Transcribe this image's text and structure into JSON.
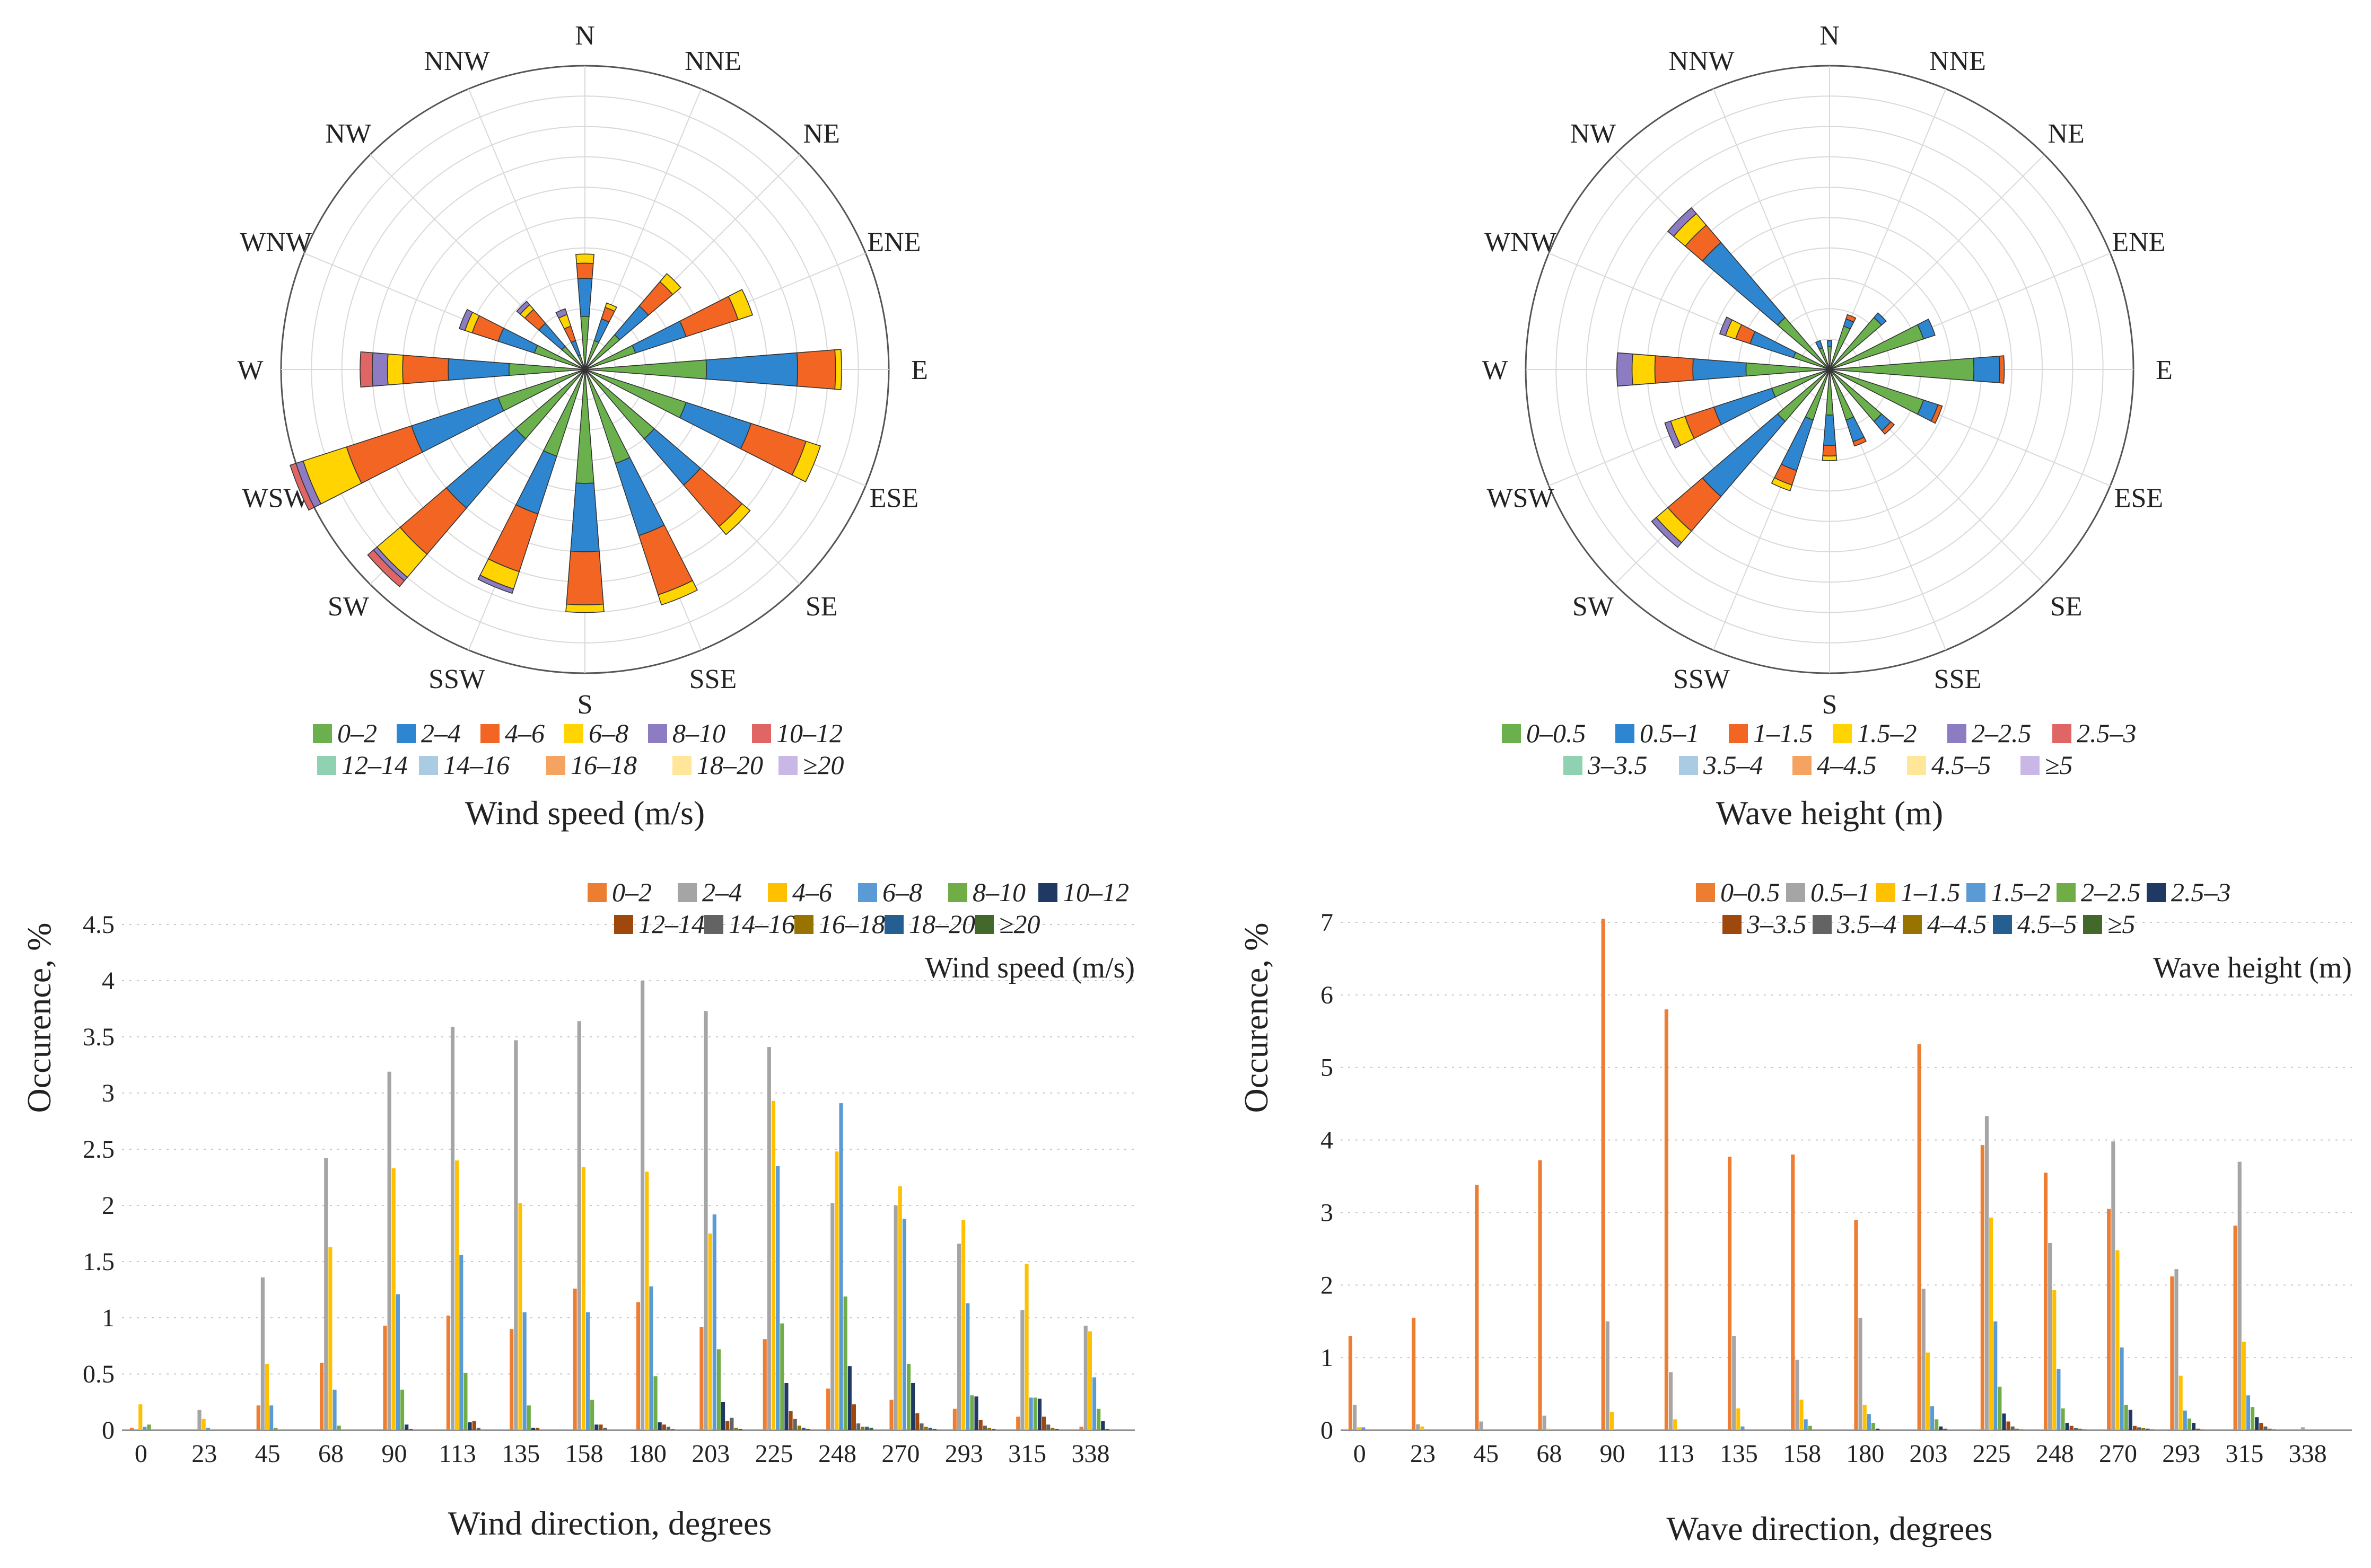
{
  "direction_labels": [
    "N",
    "NNE",
    "NE",
    "ENE",
    "E",
    "ESE",
    "SE",
    "SSE",
    "S",
    "SSW",
    "SW",
    "WSW",
    "W",
    "WNW",
    "NW",
    "NNW"
  ],
  "bar_categories": [
    "0",
    "23",
    "45",
    "68",
    "90",
    "113",
    "135",
    "158",
    "180",
    "203",
    "225",
    "248",
    "270",
    "293",
    "315",
    "338"
  ],
  "colors": {
    "rose_wind": [
      "#6ab04c",
      "#2e86d0",
      "#f26522",
      "#ffd400",
      "#8e7cc3",
      "#e06666",
      "#8fd1b0",
      "#a9cce3",
      "#f4a460",
      "#ffe699",
      "#c9b8e6"
    ],
    "rose_wave": [
      "#6ab04c",
      "#2e86d0",
      "#f26522",
      "#ffd400",
      "#8e7cc3",
      "#e06666",
      "#8fd1b0",
      "#a9cce3",
      "#f4a460",
      "#ffe699",
      "#c9b8e6"
    ],
    "bar": [
      "#ed7d31",
      "#a5a5a5",
      "#ffc000",
      "#5b9bd5",
      "#70ad47",
      "#1f3864",
      "#9e480e",
      "#636363",
      "#997300",
      "#255e91",
      "#43682b"
    ]
  },
  "chart_data": [
    {
      "type": "radar",
      "name": "wind-rose",
      "title": "Wind speed (m/s)",
      "directions": [
        "N",
        "NNE",
        "NE",
        "ENE",
        "E",
        "ESE",
        "SE",
        "SSE",
        "S",
        "SSW",
        "SW",
        "WSW",
        "W",
        "WNW",
        "NW",
        "NNW"
      ],
      "bins": [
        "0–2",
        "2–4",
        "4–6",
        "6–8",
        "8–10",
        "10–12",
        "12–14",
        "14–16",
        "16–18",
        "18–20",
        "≥20"
      ],
      "rmax": 20,
      "rings": 10,
      "segments_cumulative": [
        [
          0,
          3.5,
          6.0,
          7.0,
          7.6
        ],
        [
          0,
          2.0,
          3.5,
          4.3,
          4.6
        ],
        [
          0,
          3.0,
          5.5,
          7.6,
          8.3
        ],
        [
          0,
          3.5,
          7.0,
          10.6,
          11.6
        ],
        [
          0,
          8.0,
          14.0,
          16.5,
          16.9
        ],
        [
          0,
          7.0,
          11.5,
          15.3,
          16.3
        ],
        [
          0,
          6.0,
          10.0,
          13.6,
          14.3
        ],
        [
          0,
          6.5,
          11.5,
          15.6,
          16.3
        ],
        [
          0,
          7.5,
          12.0,
          15.5,
          16.0
        ],
        [
          0,
          6.0,
          10.0,
          14.0,
          15.2,
          15.5
        ],
        [
          0,
          6.0,
          12.0,
          16.0,
          18.0,
          18.3,
          18.8
        ],
        [
          0,
          6.0,
          12.0,
          16.5,
          19.5,
          20.0,
          20.4
        ],
        [
          0,
          5.0,
          9.0,
          12.0,
          13.0,
          14.0,
          14.8
        ],
        [
          0,
          3.5,
          6.0,
          7.8,
          8.3,
          8.7
        ],
        [
          0,
          2.0,
          4.0,
          5.2,
          5.6,
          5.9
        ],
        [
          0,
          1.0,
          2.0,
          3.0,
          3.8,
          4.2
        ]
      ],
      "legend": [
        "0–2",
        "2–4",
        "4–6",
        "6–8",
        "8–10",
        "10–12",
        "12–14",
        "14–16",
        "16–18",
        "18–20",
        "≥20"
      ]
    },
    {
      "type": "radar",
      "name": "wave-rose",
      "title": "Wave height (m)",
      "directions": [
        "N",
        "NNE",
        "NE",
        "ENE",
        "E",
        "ESE",
        "SE",
        "SSE",
        "S",
        "SSW",
        "SW",
        "WSW",
        "W",
        "WNW",
        "NW",
        "NNW"
      ],
      "bins": [
        "0–0.5",
        "0.5–1",
        "1–1.5",
        "1.5–2",
        "2–2.5",
        "2.5–3",
        "3–3.5",
        "3.5–4",
        "4–4.5",
        "4.5–5",
        "≥5"
      ],
      "rmax": 20,
      "rings": 10,
      "segments_cumulative": [
        [
          0,
          1.5,
          1.9
        ],
        [
          0,
          3.0,
          3.5,
          3.8
        ],
        [
          0,
          4.5,
          4.9
        ],
        [
          0,
          6.5,
          7.3
        ],
        [
          0,
          9.5,
          11.2,
          11.5
        ],
        [
          0,
          6.5,
          7.5,
          7.8
        ],
        [
          0,
          4.5,
          5.3,
          5.6
        ],
        [
          0,
          3.5,
          5.0,
          5.3
        ],
        [
          0,
          3.0,
          5.0,
          5.7,
          6.0
        ],
        [
          0,
          3.5,
          7.0,
          8.0,
          8.4
        ],
        [
          0,
          4.5,
          11.0,
          14.0,
          15.0,
          15.4
        ],
        [
          0,
          4.0,
          8.0,
          10.0,
          11.0,
          11.4
        ],
        [
          0,
          5.5,
          9.0,
          11.5,
          13.0,
          14.0
        ],
        [
          0,
          2.5,
          5.5,
          6.5,
          7.2,
          7.6
        ],
        [
          0,
          4.5,
          11.0,
          12.5,
          13.5,
          14.0
        ],
        [
          0,
          1.5,
          2.0
        ]
      ],
      "legend": [
        "0–0.5",
        "0.5–1",
        "1–1.5",
        "1.5–2",
        "2–2.5",
        "2.5–3",
        "3–3.5",
        "3.5–4",
        "4–4.5",
        "4.5–5",
        "≥5"
      ]
    },
    {
      "type": "bar",
      "name": "wind-bars",
      "xlabel": "Wind direction, degrees",
      "ylabel": "Occurence, %",
      "legend_title": "Wind speed (m/s)",
      "ylim": [
        0,
        4.5
      ],
      "yticks": [
        "0",
        "0.5",
        "1",
        "1.5",
        "2",
        "2.5",
        "3",
        "3.5",
        "4",
        "4.5"
      ],
      "categories": [
        "0",
        "23",
        "45",
        "68",
        "90",
        "113",
        "135",
        "158",
        "180",
        "203",
        "225",
        "248",
        "270",
        "293",
        "315",
        "338"
      ],
      "series": [
        {
          "name": "0–2",
          "values": [
            0.02,
            0,
            0.22,
            0.6,
            0.93,
            1.02,
            0.9,
            1.26,
            1.14,
            0.92,
            0.81,
            0.37,
            0.27,
            0.19,
            0.12,
            0.03
          ]
        },
        {
          "name": "2–4",
          "values": [
            0,
            0.18,
            1.36,
            2.42,
            3.19,
            3.59,
            3.47,
            3.64,
            4.0,
            3.73,
            3.41,
            2.02,
            2.0,
            1.66,
            1.07,
            0.93
          ]
        },
        {
          "name": "4–6",
          "values": [
            0.23,
            0.1,
            0.59,
            1.63,
            2.33,
            2.4,
            2.02,
            2.34,
            2.3,
            1.75,
            2.93,
            2.48,
            2.17,
            1.87,
            1.48,
            0.88
          ]
        },
        {
          "name": "6–8",
          "values": [
            0.03,
            0.02,
            0.22,
            0.36,
            1.21,
            1.56,
            1.05,
            1.05,
            1.28,
            1.92,
            2.35,
            2.91,
            1.88,
            1.13,
            0.29,
            0.47
          ]
        },
        {
          "name": "8–10",
          "values": [
            0.05,
            0,
            0.02,
            0.04,
            0.36,
            0.51,
            0.22,
            0.27,
            0.48,
            0.72,
            0.95,
            1.19,
            0.59,
            0.31,
            0.29,
            0.19
          ]
        },
        {
          "name": "10–12",
          "values": [
            0,
            0,
            0,
            0,
            0.05,
            0.07,
            0.02,
            0.05,
            0.07,
            0.25,
            0.42,
            0.57,
            0.42,
            0.3,
            0.28,
            0.08
          ]
        },
        {
          "name": "12–14",
          "values": [
            0,
            0,
            0,
            0,
            0.01,
            0.08,
            0.02,
            0.05,
            0.05,
            0.08,
            0.17,
            0.23,
            0.15,
            0.09,
            0.12,
            0.01
          ]
        },
        {
          "name": "14–16",
          "values": [
            0,
            0,
            0,
            0,
            0,
            0.02,
            0,
            0.02,
            0.03,
            0.11,
            0.1,
            0.06,
            0.06,
            0.04,
            0.05,
            0
          ]
        },
        {
          "name": "16–18",
          "values": [
            0,
            0,
            0,
            0,
            0,
            0,
            0,
            0,
            0.01,
            0.02,
            0.04,
            0.03,
            0.03,
            0.02,
            0.02,
            0
          ]
        },
        {
          "name": "18–20",
          "values": [
            0,
            0,
            0,
            0,
            0,
            0,
            0,
            0,
            0,
            0.01,
            0.02,
            0.03,
            0.02,
            0.01,
            0.01,
            0
          ]
        },
        {
          "name": "≥20",
          "values": [
            0,
            0,
            0,
            0,
            0,
            0,
            0,
            0,
            0,
            0,
            0.01,
            0.02,
            0.01,
            0,
            0,
            0
          ]
        }
      ]
    },
    {
      "type": "bar",
      "name": "wave-bars",
      "xlabel": "Wave direction, degrees",
      "ylabel": "Occurence, %",
      "legend_title": "Wave height (m)",
      "ylim": [
        0,
        7
      ],
      "yticks": [
        "0",
        "1",
        "2",
        "3",
        "4",
        "5",
        "6",
        "7"
      ],
      "categories": [
        "0",
        "23",
        "45",
        "68",
        "90",
        "113",
        "135",
        "158",
        "180",
        "203",
        "225",
        "248",
        "270",
        "293",
        "315",
        "338"
      ],
      "series": [
        {
          "name": "0–0.5",
          "values": [
            1.3,
            1.55,
            3.38,
            3.72,
            7.05,
            5.8,
            3.77,
            3.8,
            2.9,
            5.32,
            3.93,
            3.55,
            3.05,
            2.12,
            2.82,
            0
          ]
        },
        {
          "name": "0.5–1",
          "values": [
            0.35,
            0.08,
            0.12,
            0.2,
            1.5,
            0.8,
            1.3,
            0.97,
            1.55,
            1.95,
            4.33,
            2.58,
            3.98,
            2.22,
            3.7,
            0.04
          ]
        },
        {
          "name": "1–1.5",
          "values": [
            0.04,
            0.05,
            0,
            0.02,
            0.25,
            0.15,
            0.3,
            0.42,
            0.35,
            1.07,
            2.93,
            1.93,
            2.48,
            0.75,
            1.22,
            0
          ]
        },
        {
          "name": "1.5–2",
          "values": [
            0.04,
            0,
            0,
            0,
            0,
            0,
            0.05,
            0.15,
            0.22,
            0.33,
            1.5,
            0.84,
            1.14,
            0.27,
            0.48,
            0
          ]
        },
        {
          "name": "2–2.5",
          "values": [
            0,
            0,
            0,
            0,
            0,
            0,
            0,
            0.06,
            0.1,
            0.15,
            0.6,
            0.3,
            0.35,
            0.16,
            0.32,
            0
          ]
        },
        {
          "name": "2.5–3",
          "values": [
            0,
            0,
            0,
            0,
            0,
            0,
            0,
            0,
            0.02,
            0.05,
            0.23,
            0.1,
            0.28,
            0.1,
            0.18,
            0
          ]
        },
        {
          "name": "3–3.5",
          "values": [
            0,
            0,
            0,
            0,
            0,
            0,
            0,
            0,
            0,
            0.02,
            0.12,
            0.06,
            0.06,
            0.02,
            0.1,
            0
          ]
        },
        {
          "name": "3.5–4",
          "values": [
            0,
            0,
            0,
            0,
            0,
            0,
            0,
            0,
            0,
            0,
            0.05,
            0.03,
            0.04,
            0.01,
            0.05,
            0
          ]
        },
        {
          "name": "4–4.5",
          "values": [
            0,
            0,
            0,
            0,
            0,
            0,
            0,
            0,
            0,
            0,
            0.02,
            0.02,
            0.03,
            0,
            0.02,
            0
          ]
        },
        {
          "name": "4.5–5",
          "values": [
            0,
            0,
            0,
            0,
            0,
            0,
            0,
            0,
            0,
            0,
            0.01,
            0.01,
            0.02,
            0,
            0.01,
            0
          ]
        },
        {
          "name": "≥5",
          "values": [
            0,
            0,
            0,
            0,
            0,
            0,
            0,
            0,
            0,
            0,
            0,
            0,
            0.01,
            0,
            0,
            0
          ]
        }
      ]
    }
  ]
}
